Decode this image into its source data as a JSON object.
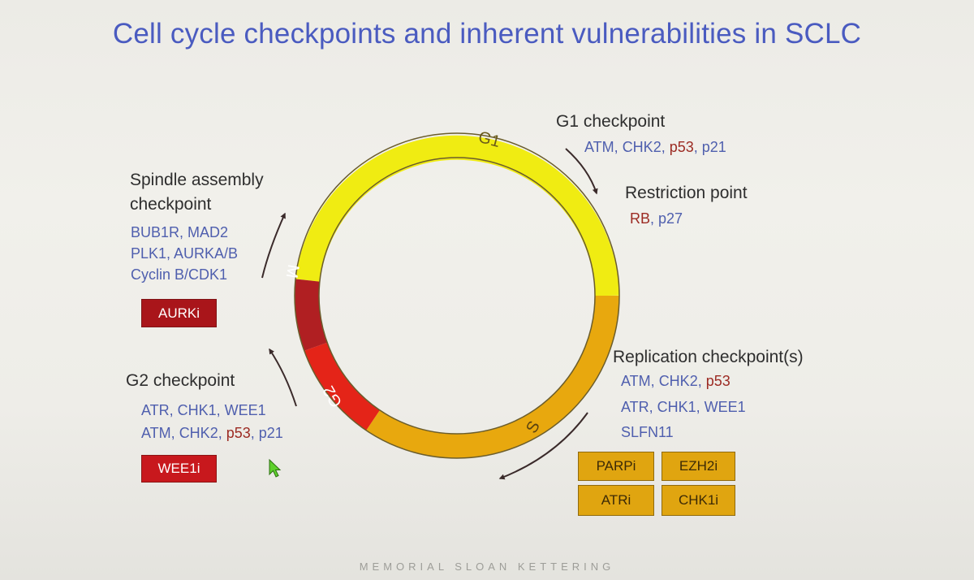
{
  "title": "Cell cycle checkpoints and inherent vulnerabilities in SCLC",
  "phases": {
    "g1": "G1",
    "s": "S",
    "g2": "G2",
    "m": "M"
  },
  "g1_checkpoint": {
    "heading": "G1 checkpoint",
    "proteins": [
      "ATM",
      "CHK2",
      "p53",
      "p21"
    ]
  },
  "restriction_point": {
    "heading": "Restriction point",
    "proteins": [
      "RB",
      "p27"
    ]
  },
  "replication_checkpoint": {
    "heading": "Replication checkpoint(s)",
    "line1": [
      "ATM",
      "CHK2",
      "p53"
    ],
    "line2": "ATR, CHK1, WEE1",
    "line3": "SLFN11",
    "drugs": [
      "PARPi",
      "EZH2i",
      "ATRi",
      "CHK1i"
    ]
  },
  "spindle_checkpoint": {
    "heading_line1": "Spindle assembly",
    "heading_line2": "checkpoint",
    "line1": "BUB1R, MAD2",
    "line2": "PLK1, AURKA/B",
    "line3": "Cyclin B/CDK1",
    "drug": "AURKi"
  },
  "g2_checkpoint": {
    "heading": "G2 checkpoint",
    "line1": "ATR, CHK1, WEE1",
    "line2": [
      "ATM",
      "CHK2",
      "p53",
      "p21"
    ],
    "drug": "WEE1i"
  },
  "footer": "MEMORIAL SLOAN KETTERING",
  "colors": {
    "title": "#4a5bc0",
    "protein_blue": "#4f5fae",
    "protein_red": "#9c2b23",
    "g1_phase": "#f0ec12",
    "s_phase": "#e8a80e",
    "g2_phase": "#e42418",
    "m_phase": "#b01f22"
  }
}
